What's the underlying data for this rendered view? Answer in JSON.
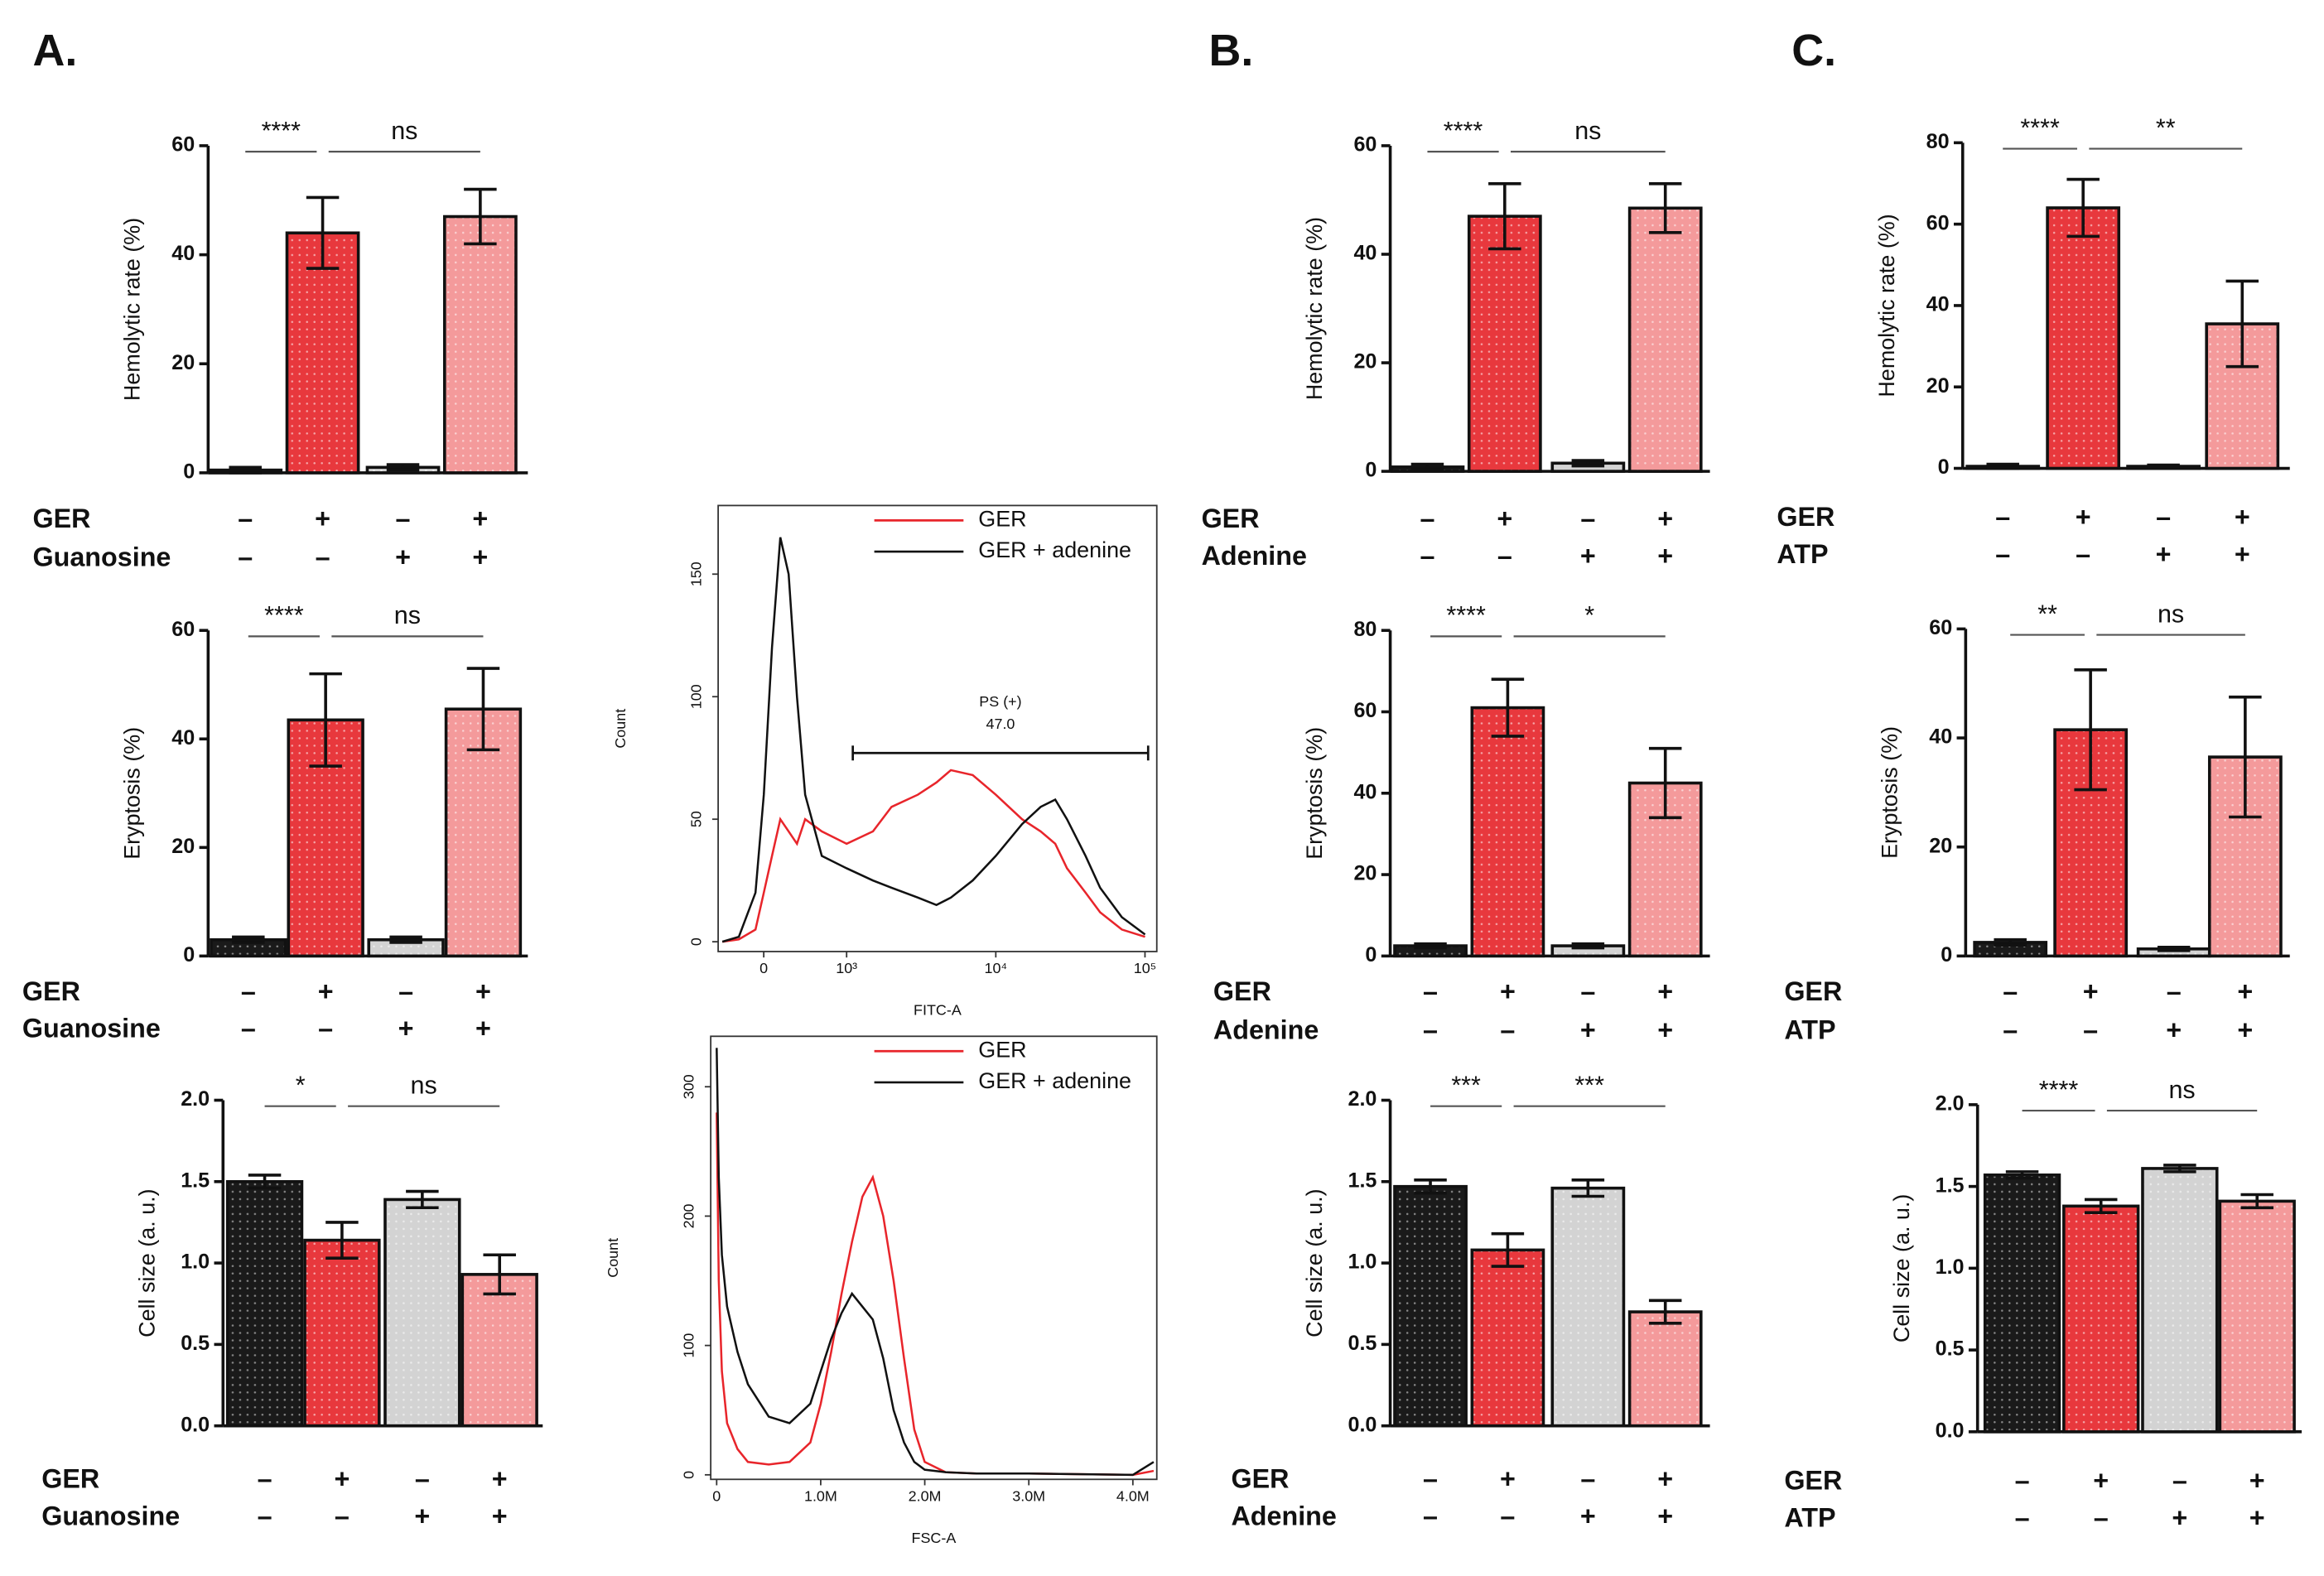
{
  "panels": [
    "A.",
    "B.",
    "C."
  ],
  "chart_data": [
    {
      "type": "bar",
      "ylabel": "Hemolytic rate (%)",
      "values": [
        0.5,
        44,
        1,
        47
      ],
      "errors": [
        0.5,
        6.5,
        0.5,
        5
      ],
      "colors": [
        "#1a1a1a",
        "#e8383d",
        "#d3d3d3",
        "#f49a9b"
      ],
      "ylim": [
        0,
        60
      ],
      "yticks": [
        0,
        20,
        40,
        60
      ],
      "conditions": [
        {
          "label": "GER",
          "signs": [
            "–",
            "+",
            "–",
            "+"
          ]
        },
        {
          "label": "Guanosine",
          "signs": [
            "–",
            "–",
            "+",
            "+"
          ]
        }
      ],
      "significance": [
        "****",
        "ns"
      ]
    },
    {
      "type": "bar",
      "ylabel": "Eryptosis (%)",
      "values": [
        3,
        43.5,
        3,
        45.5
      ],
      "errors": [
        0.5,
        8.5,
        0.5,
        7.5
      ],
      "colors": [
        "#1a1a1a",
        "#e8383d",
        "#d3d3d3",
        "#f49a9b"
      ],
      "ylim": [
        0,
        60
      ],
      "yticks": [
        0,
        20,
        40,
        60
      ],
      "conditions": [
        {
          "label": "GER",
          "signs": [
            "–",
            "+",
            "–",
            "+"
          ]
        },
        {
          "label": "Guanosine",
          "signs": [
            "–",
            "–",
            "+",
            "+"
          ]
        }
      ],
      "significance": [
        "****",
        "ns"
      ]
    },
    {
      "type": "bar",
      "ylabel": "Cell size (a. u.)",
      "values": [
        1.5,
        1.14,
        1.39,
        0.93
      ],
      "errors": [
        0.04,
        0.11,
        0.05,
        0.12
      ],
      "colors": [
        "#1a1a1a",
        "#e8383d",
        "#d3d3d3",
        "#f49a9b"
      ],
      "ylim": [
        0,
        2
      ],
      "yticks": [
        {
          "value": 0,
          "label": "0.0"
        },
        0.5,
        {
          "value": 1,
          "label": "1.0"
        },
        1.5,
        {
          "value": 2,
          "label": "2.0"
        }
      ],
      "conditions": [
        {
          "label": "GER",
          "signs": [
            "–",
            "+",
            "–",
            "+"
          ]
        },
        {
          "label": "Guanosine",
          "signs": [
            "–",
            "–",
            "+",
            "+"
          ]
        }
      ],
      "significance": [
        "*",
        "ns"
      ]
    },
    {
      "type": "line",
      "xlabel": "FITC-A",
      "ylabel": "Count",
      "xscale": "biex",
      "legend": "upper right",
      "x": [
        -500,
        -300,
        -100,
        0,
        100,
        200,
        300,
        400,
        500,
        700,
        1000,
        1500,
        2000,
        3000,
        4000,
        5000,
        7000,
        10000,
        15000,
        20000,
        25000,
        30000,
        40000,
        50000,
        70000,
        100000
      ],
      "series": [
        {
          "name": "GER",
          "color": "#e8252b",
          "values": [
            0,
            1,
            5,
            20,
            35,
            50,
            45,
            40,
            50,
            45,
            40,
            45,
            55,
            60,
            65,
            70,
            68,
            60,
            50,
            45,
            40,
            30,
            20,
            12,
            5,
            2
          ]
        },
        {
          "name": "GER + adenine",
          "color": "#111111",
          "values": [
            0,
            2,
            20,
            60,
            120,
            165,
            150,
            100,
            60,
            35,
            30,
            25,
            22,
            18,
            15,
            18,
            25,
            35,
            48,
            55,
            58,
            50,
            35,
            22,
            10,
            3
          ]
        }
      ],
      "xlim": [
        -550,
        120000
      ],
      "xticks": [
        0,
        {
          "value": 1000,
          "label": "10³"
        },
        {
          "value": 10000,
          "label": "10⁴"
        },
        {
          "value": 100000,
          "label": "10⁵"
        }
      ],
      "ylim": [
        -4,
        178
      ],
      "yticks": [
        0,
        50,
        100,
        150
      ],
      "gate": {
        "label": "PS (+)",
        "value": {
          "value": 47,
          "label": "47.0"
        },
        "range": [
          1100,
          105000
        ],
        "level": 77
      }
    },
    {
      "type": "line",
      "xlabel": "FSC-A",
      "ylabel": "Count",
      "xscale": "linear",
      "legend": "upper right",
      "x": [
        0,
        20000,
        50000,
        100000,
        200000,
        300000,
        500000,
        700000,
        900000,
        1000000,
        1100000,
        1200000,
        1300000,
        1400000,
        1500000,
        1600000,
        1700000,
        1800000,
        1900000,
        2000000,
        2200000,
        2500000,
        3000000,
        4000000,
        4200000
      ],
      "series": [
        {
          "name": "GER",
          "color": "#e8252b",
          "values": [
            280,
            150,
            80,
            40,
            20,
            10,
            8,
            10,
            25,
            55,
            95,
            140,
            180,
            215,
            230,
            200,
            150,
            90,
            35,
            10,
            2,
            1,
            1,
            0,
            3
          ]
        },
        {
          "name": "GER + adenine",
          "color": "#111111",
          "values": [
            330,
            230,
            170,
            130,
            95,
            70,
            45,
            40,
            55,
            80,
            105,
            125,
            140,
            130,
            120,
            90,
            50,
            25,
            10,
            4,
            2,
            1,
            1,
            0,
            10
          ]
        }
      ],
      "xlim": [
        -57000,
        4230000
      ],
      "xticks": [
        0,
        {
          "value": 1000000,
          "label": "1.0M"
        },
        {
          "value": 2000000,
          "label": "2.0M"
        },
        {
          "value": 3000000,
          "label": "3.0M"
        },
        {
          "value": 4000000,
          "label": "4.0M"
        }
      ],
      "ylim": [
        -3.5,
        339
      ],
      "yticks": [
        0,
        100,
        200,
        300
      ]
    },
    {
      "type": "bar",
      "ylabel": "Hemolytic rate (%)",
      "values": [
        0.8,
        47,
        1.5,
        48.5
      ],
      "errors": [
        0.5,
        6,
        0.5,
        4.5
      ],
      "colors": [
        "#1a1a1a",
        "#e8383d",
        "#d3d3d3",
        "#f49a9b"
      ],
      "ylim": [
        0,
        60
      ],
      "yticks": [
        0,
        20,
        40,
        60
      ],
      "conditions": [
        {
          "label": "GER",
          "signs": [
            "–",
            "+",
            "–",
            "+"
          ]
        },
        {
          "label": "Adenine",
          "signs": [
            "–",
            "–",
            "+",
            "+"
          ]
        }
      ],
      "significance": [
        "****",
        "ns"
      ]
    },
    {
      "type": "bar",
      "ylabel": "Eryptosis (%)",
      "values": [
        2.5,
        61,
        2.5,
        42.5
      ],
      "errors": [
        0.5,
        7,
        0.5,
        8.5
      ],
      "colors": [
        "#1a1a1a",
        "#e8383d",
        "#d3d3d3",
        "#f49a9b"
      ],
      "ylim": [
        0,
        80
      ],
      "yticks": [
        0,
        20,
        40,
        60,
        80
      ],
      "conditions": [
        {
          "label": "GER",
          "signs": [
            "–",
            "+",
            "–",
            "+"
          ]
        },
        {
          "label": "Adenine",
          "signs": [
            "–",
            "–",
            "+",
            "+"
          ]
        }
      ],
      "significance": [
        "****",
        "*"
      ]
    },
    {
      "type": "bar",
      "ylabel": "Cell size (a. u.)",
      "values": [
        1.47,
        1.08,
        1.46,
        0.7
      ],
      "errors": [
        0.04,
        0.1,
        0.05,
        0.07
      ],
      "colors": [
        "#1a1a1a",
        "#e8383d",
        "#d3d3d3",
        "#f49a9b"
      ],
      "ylim": [
        0,
        2
      ],
      "yticks": [
        {
          "value": 0,
          "label": "0.0"
        },
        0.5,
        {
          "value": 1,
          "label": "1.0"
        },
        1.5,
        {
          "value": 2,
          "label": "2.0"
        }
      ],
      "conditions": [
        {
          "label": "GER",
          "signs": [
            "–",
            "+",
            "–",
            "+"
          ]
        },
        {
          "label": "Adenine",
          "signs": [
            "–",
            "–",
            "+",
            "+"
          ]
        }
      ],
      "significance": [
        "***",
        "***"
      ]
    },
    {
      "type": "bar",
      "ylabel": "Hemolytic rate (%)",
      "values": [
        0.5,
        64,
        0.5,
        35.5
      ],
      "errors": [
        0.5,
        7,
        0.3,
        10.5
      ],
      "colors": [
        "#1a1a1a",
        "#e8383d",
        "#d3d3d3",
        "#f49a9b"
      ],
      "ylim": [
        0,
        80
      ],
      "yticks": [
        0,
        20,
        40,
        60,
        80
      ],
      "conditions": [
        {
          "label": "GER",
          "signs": [
            "–",
            "+",
            "–",
            "+"
          ]
        },
        {
          "label": "ATP",
          "signs": [
            "–",
            "–",
            "+",
            "+"
          ]
        }
      ],
      "significance": [
        "****",
        "**"
      ]
    },
    {
      "type": "bar",
      "ylabel": "Eryptosis (%)",
      "values": [
        2.5,
        41.5,
        1.3,
        36.5
      ],
      "errors": [
        0.5,
        11,
        0.3,
        11
      ],
      "colors": [
        "#1a1a1a",
        "#e8383d",
        "#d3d3d3",
        "#f49a9b"
      ],
      "ylim": [
        0,
        60
      ],
      "yticks": [
        0,
        20,
        40,
        60
      ],
      "conditions": [
        {
          "label": "GER",
          "signs": [
            "–",
            "+",
            "–",
            "+"
          ]
        },
        {
          "label": "ATP",
          "signs": [
            "–",
            "–",
            "+",
            "+"
          ]
        }
      ],
      "significance": [
        "**",
        "ns"
      ]
    },
    {
      "type": "bar",
      "ylabel": "Cell size (a. u.)",
      "values": [
        1.57,
        1.38,
        1.61,
        1.41
      ],
      "errors": [
        0.02,
        0.04,
        0.02,
        0.04
      ],
      "colors": [
        "#1a1a1a",
        "#e8383d",
        "#d3d3d3",
        "#f49a9b"
      ],
      "ylim": [
        0,
        2
      ],
      "yticks": [
        {
          "value": 0,
          "label": "0.0"
        },
        0.5,
        {
          "value": 1,
          "label": "1.0"
        },
        1.5,
        {
          "value": 2,
          "label": "2.0"
        }
      ],
      "conditions": [
        {
          "label": "GER",
          "signs": [
            "–",
            "+",
            "–",
            "+"
          ]
        },
        {
          "label": "ATP",
          "signs": [
            "–",
            "–",
            "+",
            "+"
          ]
        }
      ],
      "significance": [
        "****",
        "ns"
      ]
    }
  ]
}
